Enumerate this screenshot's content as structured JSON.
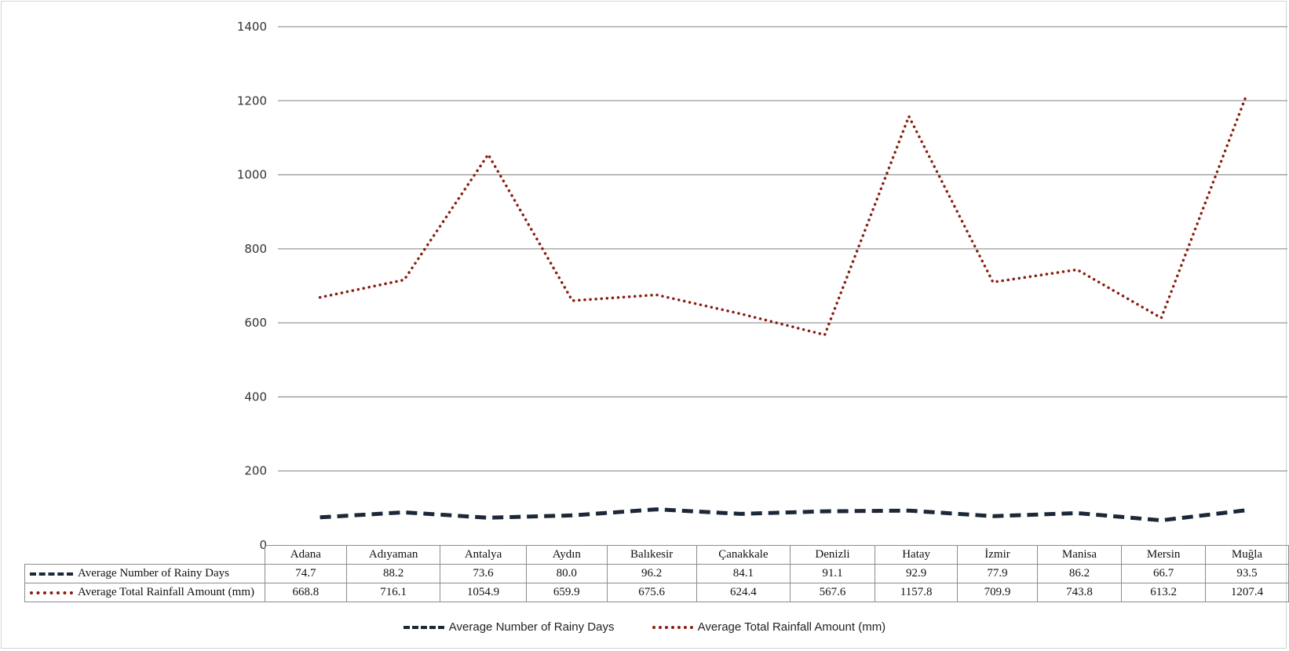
{
  "chart_data": {
    "type": "line",
    "categories": [
      "Adana",
      "Adıyaman",
      "Antalya",
      "Aydın",
      "Balıkesir",
      "Çanakkale",
      "Denizli",
      "Hatay",
      "İzmir",
      "Manisa",
      "Mersin",
      "Muğla"
    ],
    "series": [
      {
        "name": "Average Number of Rainy Days",
        "values": [
          74.7,
          88.2,
          73.6,
          80.0,
          96.2,
          84.1,
          91.1,
          92.9,
          77.9,
          86.2,
          66.7,
          93.5
        ],
        "display": [
          "74.7",
          "88.2",
          "73.6",
          "80.0",
          "96.2",
          "84.1",
          "91.1",
          "92.9",
          "77.9",
          "86.2",
          "66.7",
          "93.5"
        ],
        "color": "#1c2738",
        "style": "dashed"
      },
      {
        "name": "Average Total Rainfall Amount (mm)",
        "values": [
          668.8,
          716.1,
          1054.9,
          659.9,
          675.6,
          624.4,
          567.6,
          1157.8,
          709.9,
          743.8,
          613.2,
          1207.4
        ],
        "display": [
          "668.8",
          "716.1",
          "1054.9",
          "659.9",
          "675.6",
          "624.4",
          "567.6",
          "1157.8",
          "709.9",
          "743.8",
          "613.2",
          "1207.4"
        ],
        "color": "#8b1c10",
        "style": "dotted"
      }
    ],
    "ylim": [
      0,
      1400
    ],
    "yticks": [
      "0",
      "200",
      "400",
      "600",
      "800",
      "1000",
      "1200",
      "1400"
    ],
    "grid": true,
    "data_table": true,
    "legend_position": "bottom"
  }
}
